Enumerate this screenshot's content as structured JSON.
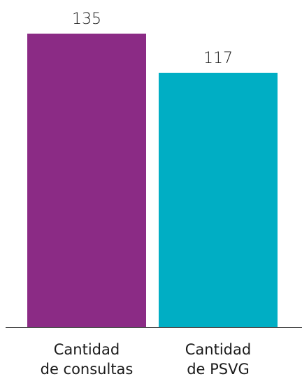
{
  "chart_data": {
    "type": "bar",
    "categories": [
      [
        "Cantidad",
        "de consultas"
      ],
      [
        "Cantidad",
        "de PSVG"
      ]
    ],
    "values": [
      135,
      117
    ],
    "colors": [
      "#8b2b85",
      "#00aec4"
    ],
    "data_labels": [
      "135",
      "117"
    ],
    "ylim": [
      0,
      135
    ],
    "grid": false,
    "legend": "none",
    "title": "",
    "xlabel": "",
    "ylabel": ""
  }
}
